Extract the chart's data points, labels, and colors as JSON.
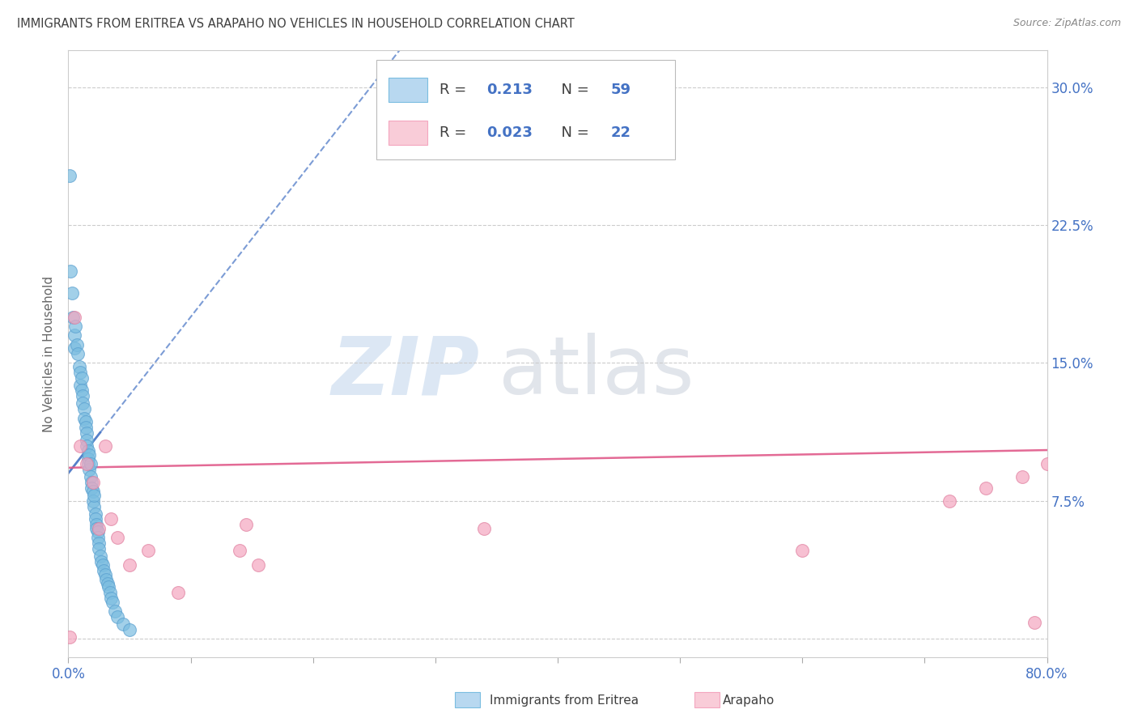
{
  "title": "IMMIGRANTS FROM ERITREA VS ARAPAHO NO VEHICLES IN HOUSEHOLD CORRELATION CHART",
  "source": "Source: ZipAtlas.com",
  "ylabel": "No Vehicles in Household",
  "xlim": [
    0.0,
    0.8
  ],
  "ylim": [
    -0.01,
    0.32
  ],
  "xticks": [
    0.0,
    0.1,
    0.2,
    0.3,
    0.4,
    0.5,
    0.6,
    0.7,
    0.8
  ],
  "xticklabels": [
    "0.0%",
    "",
    "",
    "",
    "",
    "",
    "",
    "",
    "80.0%"
  ],
  "yticks": [
    0.0,
    0.075,
    0.15,
    0.225,
    0.3
  ],
  "yticklabels": [
    "",
    "7.5%",
    "15.0%",
    "22.5%",
    "30.0%"
  ],
  "blue_R": 0.213,
  "blue_N": 59,
  "pink_R": 0.023,
  "pink_N": 22,
  "blue_color": "#7bbde0",
  "pink_color": "#f4a6bf",
  "blue_line_color": "#4472c4",
  "pink_line_color": "#e05a8a",
  "legend_label_blue": "Immigrants from Eritrea",
  "legend_label_pink": "Arapaho",
  "blue_x": [
    0.001,
    0.002,
    0.003,
    0.004,
    0.005,
    0.005,
    0.006,
    0.007,
    0.008,
    0.009,
    0.01,
    0.01,
    0.011,
    0.011,
    0.012,
    0.012,
    0.013,
    0.013,
    0.014,
    0.014,
    0.015,
    0.015,
    0.015,
    0.016,
    0.016,
    0.016,
    0.017,
    0.017,
    0.018,
    0.018,
    0.019,
    0.019,
    0.02,
    0.02,
    0.021,
    0.021,
    0.022,
    0.022,
    0.023,
    0.023,
    0.024,
    0.024,
    0.025,
    0.025,
    0.026,
    0.027,
    0.028,
    0.029,
    0.03,
    0.031,
    0.032,
    0.033,
    0.034,
    0.035,
    0.036,
    0.038,
    0.04,
    0.045,
    0.05
  ],
  "blue_y": [
    0.252,
    0.2,
    0.188,
    0.175,
    0.165,
    0.158,
    0.17,
    0.16,
    0.155,
    0.148,
    0.145,
    0.138,
    0.142,
    0.135,
    0.132,
    0.128,
    0.125,
    0.12,
    0.118,
    0.115,
    0.112,
    0.108,
    0.105,
    0.102,
    0.098,
    0.095,
    0.092,
    0.1,
    0.088,
    0.095,
    0.085,
    0.082,
    0.08,
    0.075,
    0.072,
    0.078,
    0.068,
    0.065,
    0.062,
    0.06,
    0.058,
    0.055,
    0.052,
    0.049,
    0.045,
    0.042,
    0.04,
    0.037,
    0.035,
    0.032,
    0.03,
    0.028,
    0.025,
    0.022,
    0.02,
    0.015,
    0.012,
    0.008,
    0.005
  ],
  "pink_x": [
    0.001,
    0.005,
    0.01,
    0.015,
    0.02,
    0.025,
    0.03,
    0.035,
    0.04,
    0.05,
    0.065,
    0.09,
    0.14,
    0.145,
    0.155,
    0.34,
    0.6,
    0.72,
    0.75,
    0.78,
    0.79,
    0.8
  ],
  "pink_y": [
    0.001,
    0.175,
    0.105,
    0.095,
    0.085,
    0.06,
    0.105,
    0.065,
    0.055,
    0.04,
    0.048,
    0.025,
    0.048,
    0.062,
    0.04,
    0.06,
    0.048,
    0.075,
    0.082,
    0.088,
    0.009,
    0.095
  ]
}
